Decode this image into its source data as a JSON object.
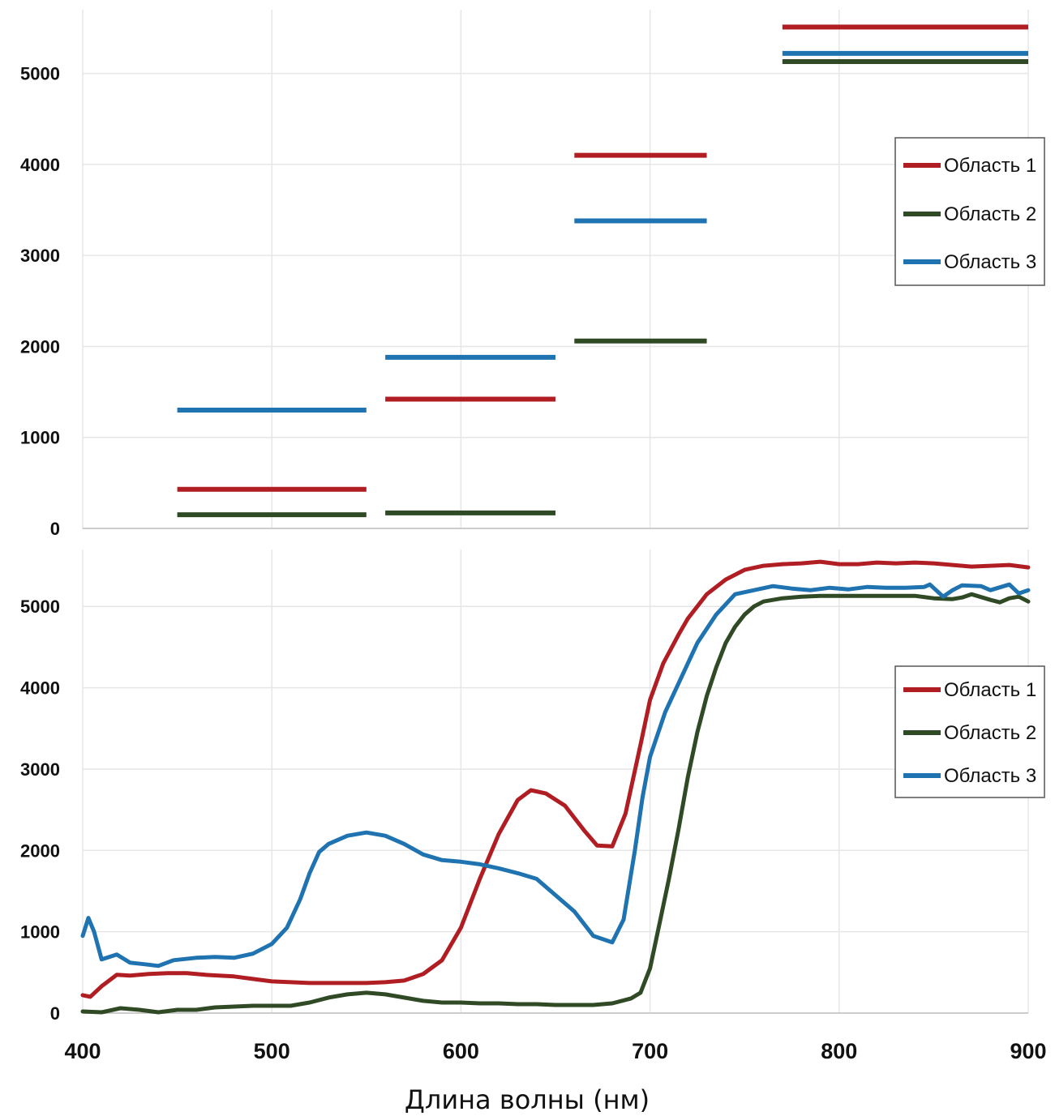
{
  "colors": {
    "region1": "#b01e23",
    "region2": "#2f4a24",
    "region3": "#1f73b0",
    "grid": "#e6e6e6",
    "axis": "#cccccc"
  },
  "xlabel": "Длина волны (нм)",
  "chart_data": [
    {
      "type": "line",
      "grid": true,
      "legend_position": "right",
      "xlim": [
        400,
        900
      ],
      "ylim": [
        0,
        5700
      ],
      "xticks": [],
      "yticks": [
        0,
        1000,
        2000,
        3000,
        4000,
        5000
      ],
      "legend": [
        "Область 1",
        "Область 2",
        "Область 3"
      ],
      "series": [
        {
          "name": "Область 1",
          "color_key": "region1",
          "segments": [
            {
              "x": [
                450,
                550
              ],
              "y": 430
            },
            {
              "x": [
                560,
                650
              ],
              "y": 1420
            },
            {
              "x": [
                660,
                730
              ],
              "y": 4100
            },
            {
              "x": [
                770,
                900
              ],
              "y": 5510
            }
          ]
        },
        {
          "name": "Область 2",
          "color_key": "region2",
          "segments": [
            {
              "x": [
                450,
                550
              ],
              "y": 150
            },
            {
              "x": [
                560,
                650
              ],
              "y": 170
            },
            {
              "x": [
                660,
                730
              ],
              "y": 2060
            },
            {
              "x": [
                770,
                900
              ],
              "y": 5130
            }
          ]
        },
        {
          "name": "Область 3",
          "color_key": "region3",
          "segments": [
            {
              "x": [
                450,
                550
              ],
              "y": 1300
            },
            {
              "x": [
                560,
                650
              ],
              "y": 1880
            },
            {
              "x": [
                660,
                730
              ],
              "y": 3380
            },
            {
              "x": [
                770,
                900
              ],
              "y": 5220
            }
          ]
        }
      ]
    },
    {
      "type": "line",
      "grid": true,
      "legend_position": "right",
      "xlim": [
        400,
        900
      ],
      "ylim": [
        0,
        5700
      ],
      "xticks": [
        400,
        500,
        600,
        700,
        800,
        900
      ],
      "yticks": [
        0,
        1000,
        2000,
        3000,
        4000,
        5000
      ],
      "legend": [
        "Область 1",
        "Область 2",
        "Область 3"
      ],
      "series": [
        {
          "name": "Область 1",
          "color_key": "region1",
          "points": [
            [
              400,
              220
            ],
            [
              404,
              200
            ],
            [
              410,
              330
            ],
            [
              418,
              470
            ],
            [
              425,
              460
            ],
            [
              435,
              480
            ],
            [
              445,
              490
            ],
            [
              455,
              490
            ],
            [
              465,
              470
            ],
            [
              480,
              450
            ],
            [
              490,
              420
            ],
            [
              500,
              390
            ],
            [
              510,
              380
            ],
            [
              520,
              370
            ],
            [
              530,
              370
            ],
            [
              540,
              370
            ],
            [
              550,
              370
            ],
            [
              560,
              380
            ],
            [
              570,
              400
            ],
            [
              580,
              480
            ],
            [
              590,
              650
            ],
            [
              600,
              1050
            ],
            [
              610,
              1650
            ],
            [
              620,
              2200
            ],
            [
              630,
              2620
            ],
            [
              637,
              2740
            ],
            [
              645,
              2700
            ],
            [
              655,
              2550
            ],
            [
              665,
              2250
            ],
            [
              672,
              2060
            ],
            [
              680,
              2050
            ],
            [
              687,
              2450
            ],
            [
              695,
              3300
            ],
            [
              700,
              3850
            ],
            [
              707,
              4300
            ],
            [
              715,
              4650
            ],
            [
              720,
              4850
            ],
            [
              730,
              5150
            ],
            [
              740,
              5330
            ],
            [
              750,
              5450
            ],
            [
              760,
              5500
            ],
            [
              770,
              5520
            ],
            [
              780,
              5530
            ],
            [
              790,
              5550
            ],
            [
              800,
              5520
            ],
            [
              810,
              5520
            ],
            [
              820,
              5540
            ],
            [
              830,
              5530
            ],
            [
              840,
              5540
            ],
            [
              850,
              5530
            ],
            [
              860,
              5510
            ],
            [
              870,
              5490
            ],
            [
              880,
              5500
            ],
            [
              890,
              5510
            ],
            [
              900,
              5480
            ]
          ]
        },
        {
          "name": "Область 2",
          "color_key": "region2",
          "points": [
            [
              400,
              20
            ],
            [
              410,
              10
            ],
            [
              420,
              60
            ],
            [
              430,
              40
            ],
            [
              440,
              10
            ],
            [
              450,
              40
            ],
            [
              460,
              40
            ],
            [
              470,
              70
            ],
            [
              480,
              80
            ],
            [
              490,
              90
            ],
            [
              500,
              90
            ],
            [
              510,
              90
            ],
            [
              520,
              130
            ],
            [
              530,
              190
            ],
            [
              540,
              230
            ],
            [
              550,
              250
            ],
            [
              560,
              230
            ],
            [
              570,
              190
            ],
            [
              580,
              150
            ],
            [
              590,
              130
            ],
            [
              600,
              130
            ],
            [
              610,
              120
            ],
            [
              620,
              120
            ],
            [
              630,
              110
            ],
            [
              640,
              110
            ],
            [
              650,
              100
            ],
            [
              660,
              100
            ],
            [
              670,
              100
            ],
            [
              680,
              120
            ],
            [
              690,
              180
            ],
            [
              695,
              250
            ],
            [
              700,
              550
            ],
            [
              705,
              1100
            ],
            [
              710,
              1650
            ],
            [
              715,
              2250
            ],
            [
              720,
              2900
            ],
            [
              725,
              3450
            ],
            [
              730,
              3900
            ],
            [
              735,
              4250
            ],
            [
              740,
              4550
            ],
            [
              745,
              4750
            ],
            [
              750,
              4900
            ],
            [
              755,
              5000
            ],
            [
              760,
              5060
            ],
            [
              770,
              5100
            ],
            [
              780,
              5120
            ],
            [
              790,
              5130
            ],
            [
              800,
              5130
            ],
            [
              810,
              5130
            ],
            [
              820,
              5130
            ],
            [
              830,
              5130
            ],
            [
              840,
              5130
            ],
            [
              850,
              5100
            ],
            [
              860,
              5090
            ],
            [
              865,
              5110
            ],
            [
              870,
              5150
            ],
            [
              880,
              5080
            ],
            [
              885,
              5050
            ],
            [
              890,
              5100
            ],
            [
              895,
              5120
            ],
            [
              900,
              5060
            ]
          ]
        },
        {
          "name": "Область 3",
          "color_key": "region3",
          "points": [
            [
              400,
              950
            ],
            [
              403,
              1170
            ],
            [
              406,
              1000
            ],
            [
              410,
              660
            ],
            [
              418,
              720
            ],
            [
              425,
              620
            ],
            [
              433,
              600
            ],
            [
              440,
              580
            ],
            [
              448,
              650
            ],
            [
              460,
              680
            ],
            [
              470,
              690
            ],
            [
              480,
              680
            ],
            [
              490,
              730
            ],
            [
              500,
              850
            ],
            [
              508,
              1050
            ],
            [
              515,
              1400
            ],
            [
              520,
              1720
            ],
            [
              525,
              1980
            ],
            [
              530,
              2080
            ],
            [
              540,
              2180
            ],
            [
              550,
              2220
            ],
            [
              560,
              2180
            ],
            [
              570,
              2080
            ],
            [
              580,
              1950
            ],
            [
              590,
              1880
            ],
            [
              600,
              1860
            ],
            [
              610,
              1830
            ],
            [
              620,
              1780
            ],
            [
              630,
              1720
            ],
            [
              640,
              1650
            ],
            [
              650,
              1450
            ],
            [
              660,
              1250
            ],
            [
              670,
              950
            ],
            [
              680,
              870
            ],
            [
              686,
              1150
            ],
            [
              692,
              2000
            ],
            [
              696,
              2650
            ],
            [
              700,
              3150
            ],
            [
              708,
              3700
            ],
            [
              715,
              4050
            ],
            [
              725,
              4550
            ],
            [
              735,
              4900
            ],
            [
              745,
              5150
            ],
            [
              755,
              5200
            ],
            [
              765,
              5250
            ],
            [
              775,
              5220
            ],
            [
              785,
              5200
            ],
            [
              795,
              5230
            ],
            [
              805,
              5210
            ],
            [
              815,
              5240
            ],
            [
              825,
              5230
            ],
            [
              835,
              5230
            ],
            [
              845,
              5240
            ],
            [
              848,
              5270
            ],
            [
              855,
              5120
            ],
            [
              860,
              5200
            ],
            [
              865,
              5260
            ],
            [
              875,
              5250
            ],
            [
              880,
              5200
            ],
            [
              890,
              5270
            ],
            [
              895,
              5160
            ],
            [
              900,
              5200
            ]
          ]
        }
      ]
    }
  ]
}
